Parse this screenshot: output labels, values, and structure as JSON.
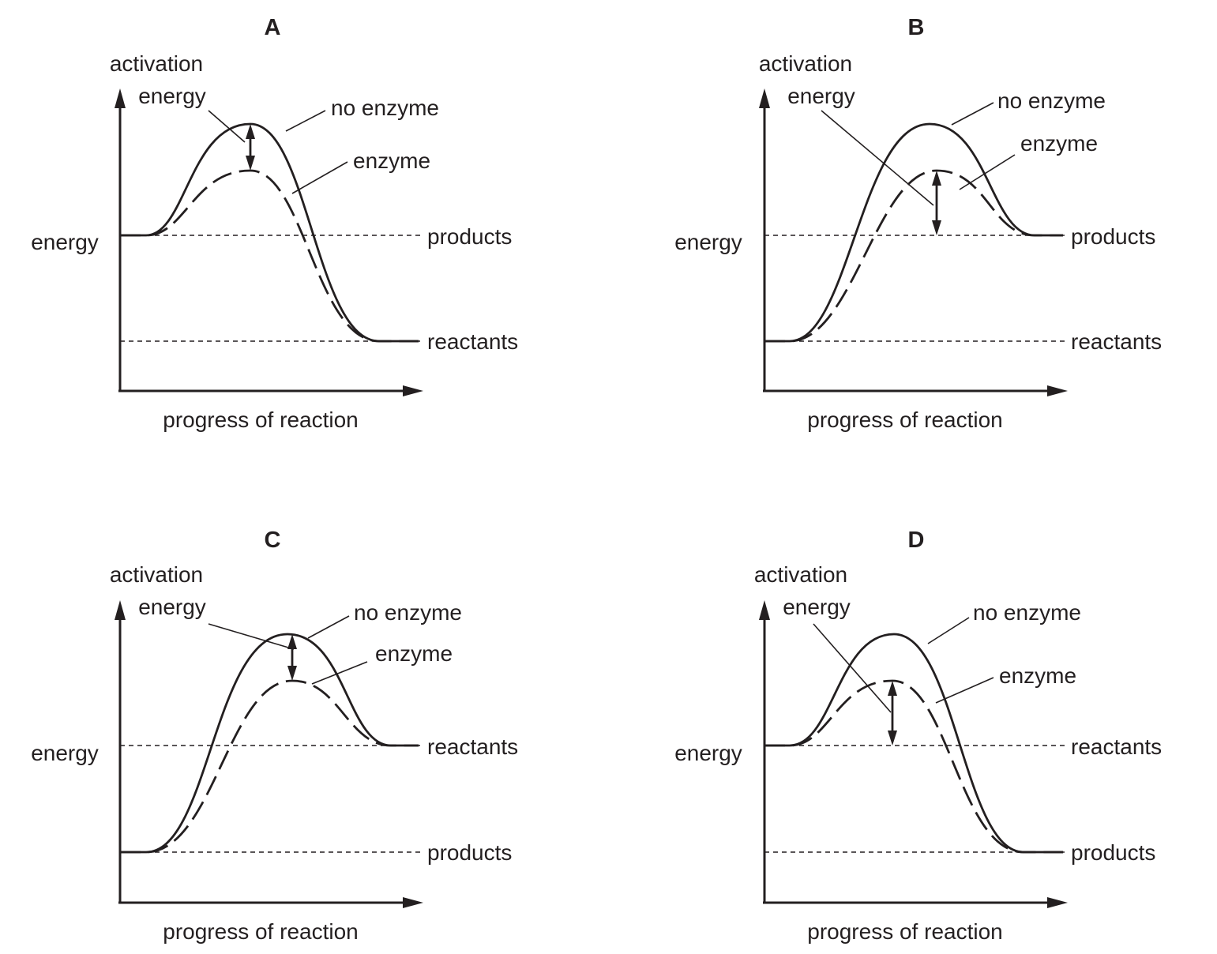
{
  "panels": [
    {
      "letter": "A",
      "y_axis_label_top": "activation",
      "activation_energy_label": "energy",
      "y_axis_label": "energy",
      "x_axis_label": "progress of reaction",
      "no_enzyme_label": "no enzyme",
      "enzyme_label": "enzyme",
      "upper_level_label": "products",
      "lower_level_label": "reactants"
    },
    {
      "letter": "B",
      "y_axis_label_top": "activation",
      "activation_energy_label": "energy",
      "y_axis_label": "energy",
      "x_axis_label": "progress of reaction",
      "no_enzyme_label": "no enzyme",
      "enzyme_label": "enzyme",
      "upper_level_label": "products",
      "lower_level_label": "reactants"
    },
    {
      "letter": "C",
      "y_axis_label_top": "activation",
      "activation_energy_label": "energy",
      "y_axis_label": "energy",
      "x_axis_label": "progress of reaction",
      "no_enzyme_label": "no enzyme",
      "enzyme_label": "enzyme",
      "upper_level_label": "reactants",
      "lower_level_label": "products"
    },
    {
      "letter": "D",
      "y_axis_label_top": "activation",
      "activation_energy_label": "energy",
      "y_axis_label": "energy",
      "x_axis_label": "progress of reaction",
      "no_enzyme_label": "no enzyme",
      "enzyme_label": "enzyme",
      "upper_level_label": "reactants",
      "lower_level_label": "products"
    }
  ]
}
